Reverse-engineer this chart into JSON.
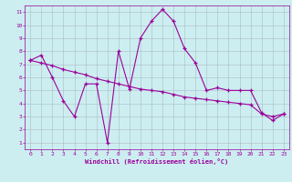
{
  "line1_x": [
    0,
    1,
    2,
    3,
    4,
    5,
    6,
    7,
    8,
    9,
    10,
    11,
    12,
    13,
    14,
    15,
    16,
    17,
    18,
    19,
    20,
    21,
    22,
    23
  ],
  "line1_y": [
    7.3,
    7.7,
    6.0,
    4.2,
    3.0,
    5.5,
    5.5,
    1.0,
    8.0,
    5.1,
    9.0,
    10.3,
    11.2,
    10.3,
    8.2,
    7.1,
    5.0,
    5.2,
    5.0,
    5.0,
    5.0,
    3.3,
    2.7,
    3.2
  ],
  "line2_x": [
    0,
    1,
    2,
    3,
    4,
    5,
    6,
    7,
    8,
    9,
    10,
    11,
    12,
    13,
    14,
    15,
    16,
    17,
    18,
    19,
    20,
    21,
    22,
    23
  ],
  "line2_y": [
    7.3,
    7.1,
    6.9,
    6.6,
    6.4,
    6.2,
    5.9,
    5.7,
    5.5,
    5.3,
    5.1,
    5.0,
    4.9,
    4.7,
    4.5,
    4.4,
    4.3,
    4.2,
    4.1,
    4.0,
    3.9,
    3.2,
    3.0,
    3.2
  ],
  "line_color": "#9b009b",
  "bg_color": "#cceef0",
  "grid_color": "#aabbc8",
  "xlabel": "Windchill (Refroidissement éolien,°C)",
  "ylabel_ticks": [
    1,
    2,
    3,
    4,
    5,
    6,
    7,
    8,
    9,
    10,
    11
  ],
  "xlim": [
    -0.5,
    23.5
  ],
  "ylim": [
    0.5,
    11.5
  ],
  "xticks": [
    0,
    1,
    2,
    3,
    4,
    5,
    6,
    7,
    8,
    9,
    10,
    11,
    12,
    13,
    14,
    15,
    16,
    17,
    18,
    19,
    20,
    21,
    22,
    23
  ],
  "marker": "+",
  "markersize": 3.5,
  "linewidth": 0.8,
  "tick_fontsize": 4.5,
  "xlabel_fontsize": 5.0
}
